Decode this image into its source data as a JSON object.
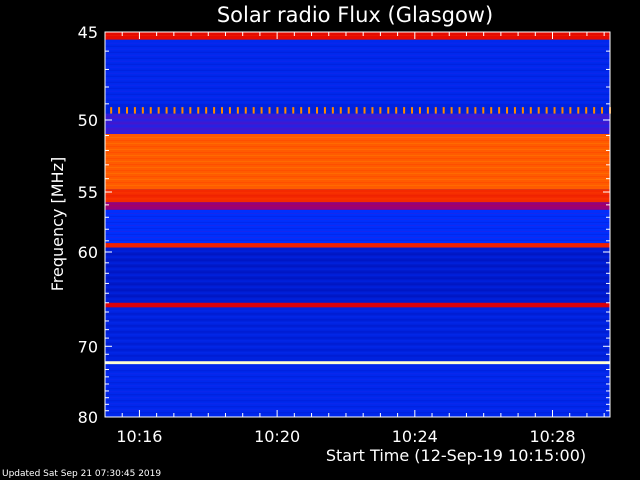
{
  "chart_data": {
    "type": "heatmap",
    "title": "Solar radio Flux (Glasgow)",
    "xlabel": "Start Time (12-Sep-19 10:15:00)",
    "ylabel": "Frequency [MHz]",
    "x_start": "10:15:00",
    "x_end": "10:29:40",
    "x_ticks": [
      "10:16",
      "10:20",
      "10:24",
      "10:28"
    ],
    "x_tick_values_min": [
      1,
      5,
      9,
      13
    ],
    "x_range_min": [
      0,
      14.67
    ],
    "ylim": [
      45,
      80
    ],
    "y_ticks": [
      45,
      50,
      55,
      60,
      70,
      80
    ],
    "y_scale": "reciprocal",
    "colormap": [
      "#000090",
      "#0030ff",
      "#8000a0",
      "#e00000",
      "#ff4000",
      "#ff9000",
      "#ffff80",
      "#ffffff"
    ],
    "bands": [
      {
        "freq_start": 45.0,
        "freq_end": 45.4,
        "level": 0.45
      },
      {
        "freq_start": 45.4,
        "freq_end": 49.0,
        "level": 0.12
      },
      {
        "freq_start": 49.2,
        "freq_end": 49.6,
        "level": 0.7,
        "dotted": true
      },
      {
        "freq_start": 49.6,
        "freq_end": 50.9,
        "level": 0.2
      },
      {
        "freq_start": 50.9,
        "freq_end": 54.8,
        "level": 0.62
      },
      {
        "freq_start": 54.8,
        "freq_end": 55.8,
        "level": 0.52
      },
      {
        "freq_start": 55.8,
        "freq_end": 56.4,
        "level": 0.32
      },
      {
        "freq_start": 56.4,
        "freq_end": 59.2,
        "level": 0.14
      },
      {
        "freq_start": 59.2,
        "freq_end": 59.6,
        "level": 0.5
      },
      {
        "freq_start": 59.6,
        "freq_end": 65.0,
        "level": 0.08
      },
      {
        "freq_start": 65.0,
        "freq_end": 65.5,
        "level": 0.42
      },
      {
        "freq_start": 65.5,
        "freq_end": 71.9,
        "level": 0.1
      },
      {
        "freq_start": 71.9,
        "freq_end": 72.3,
        "level": 0.95
      },
      {
        "freq_start": 72.3,
        "freq_end": 80.0,
        "level": 0.12
      }
    ]
  },
  "footer": {
    "updated": "Updated Sat Sep 21 07:30:45 2019"
  }
}
